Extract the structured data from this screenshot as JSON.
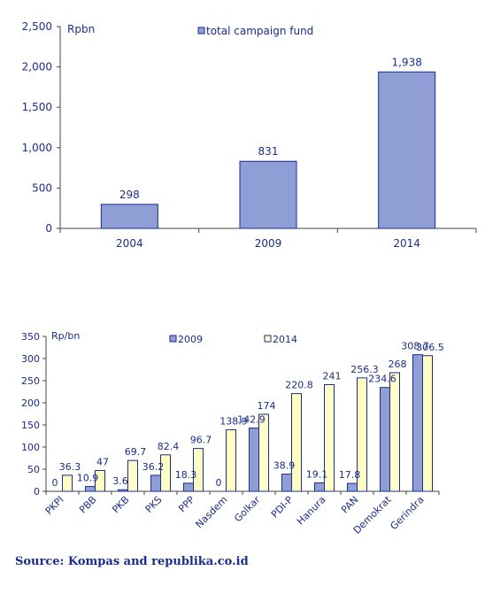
{
  "chart_data": [
    {
      "type": "bar",
      "title": "",
      "ylabel": "Rpbn",
      "xlabel": "",
      "categories": [
        "2004",
        "2009",
        "2014"
      ],
      "series": [
        {
          "name": "total campaign fund",
          "values": [
            298,
            831,
            1938
          ],
          "color": "#8f9fd6"
        }
      ],
      "data_labels": [
        "298",
        "831",
        "1,938"
      ],
      "ylim": [
        0,
        2500
      ],
      "yticks": [
        0,
        500,
        1000,
        1500,
        2000,
        2500
      ],
      "ytick_labels": [
        "0",
        "500",
        "1,000",
        "1,500",
        "2,000",
        "2,500"
      ],
      "grid": false,
      "legend_position": "top-center"
    },
    {
      "type": "bar",
      "title": "",
      "ylabel": "Rp/bn",
      "xlabel": "",
      "categories": [
        "PKPI",
        "PBB",
        "PKB",
        "PKS",
        "PPP",
        "Nasdem",
        "Golkar",
        "PDI-P",
        "Hanura",
        "PAN",
        "Demokrat",
        "Gerindra"
      ],
      "series": [
        {
          "name": "2009",
          "values": [
            0,
            10.9,
            3.6,
            36.2,
            18.3,
            0,
            142.9,
            38.9,
            19.1,
            17.8,
            234.6,
            308.7
          ],
          "color": "#8f9fd6",
          "labels": [
            "0",
            "10.9",
            "3.6",
            "36.2",
            "18.3",
            "0",
            "142.9",
            "38.9",
            "19.1",
            "17.8",
            "234.6",
            "308.7"
          ]
        },
        {
          "name": "2014",
          "values": [
            36.3,
            47,
            69.7,
            82.4,
            96.7,
            138.9,
            174,
            220.8,
            241,
            256.3,
            268,
            306.5
          ],
          "color": "#ffffc4",
          "labels": [
            "36.3",
            "47",
            "69.7",
            "82.4",
            "96.7",
            "138.9",
            "174",
            "220.8",
            "241",
            "256.3",
            "268",
            "306.5"
          ]
        }
      ],
      "ylim": [
        0,
        350
      ],
      "yticks": [
        0,
        50,
        100,
        150,
        200,
        250,
        300,
        350
      ],
      "ytick_labels": [
        "0",
        "50",
        "100",
        "150",
        "200",
        "250",
        "300",
        "350"
      ],
      "grid": false,
      "legend_position": "top-center"
    }
  ],
  "source": "Source: Kompas and republika.co.id"
}
